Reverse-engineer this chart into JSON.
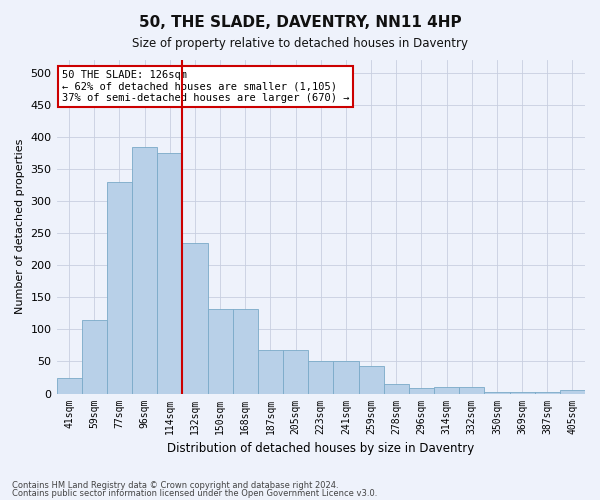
{
  "title": "50, THE SLADE, DAVENTRY, NN11 4HP",
  "subtitle": "Size of property relative to detached houses in Daventry",
  "xlabel": "Distribution of detached houses by size in Daventry",
  "ylabel": "Number of detached properties",
  "categories": [
    "41sqm",
    "59sqm",
    "77sqm",
    "96sqm",
    "114sqm",
    "132sqm",
    "150sqm",
    "168sqm",
    "187sqm",
    "205sqm",
    "223sqm",
    "241sqm",
    "259sqm",
    "278sqm",
    "296sqm",
    "314sqm",
    "332sqm",
    "350sqm",
    "369sqm",
    "387sqm",
    "405sqm"
  ],
  "values": [
    25,
    115,
    330,
    385,
    375,
    235,
    132,
    132,
    68,
    68,
    50,
    50,
    43,
    15,
    8,
    10,
    10,
    3,
    2,
    2,
    6
  ],
  "bar_color": "#b8d0e8",
  "bar_edge_color": "#7aaac8",
  "background_color": "#eef2fb",
  "grid_color": "#c8cfe0",
  "annotation_text": "50 THE SLADE: 126sqm\n← 62% of detached houses are smaller (1,105)\n37% of semi-detached houses are larger (670) →",
  "annotation_box_color": "#ffffff",
  "annotation_box_edge": "#cc0000",
  "vline_color": "#cc0000",
  "vline_x_index": 4,
  "footer1": "Contains HM Land Registry data © Crown copyright and database right 2024.",
  "footer2": "Contains public sector information licensed under the Open Government Licence v3.0.",
  "ylim": [
    0,
    520
  ],
  "yticks": [
    0,
    50,
    100,
    150,
    200,
    250,
    300,
    350,
    400,
    450,
    500
  ]
}
